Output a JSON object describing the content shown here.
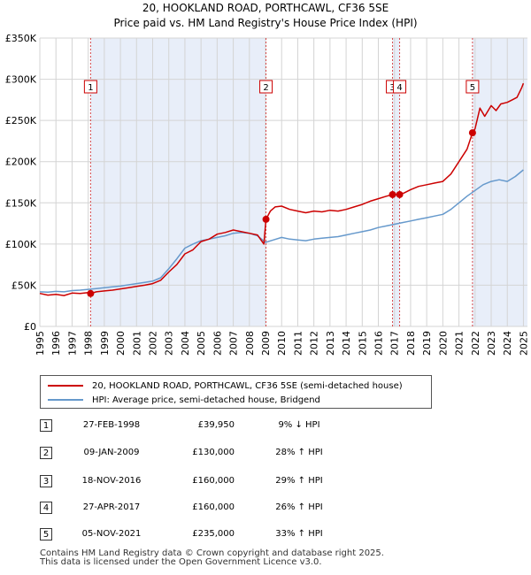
{
  "title_line1": "20, HOOKLAND ROAD, PORTHCAWL, CF36 5SE",
  "title_line2": "Price paid vs. HM Land Registry's House Price Index (HPI)",
  "chart_data": {
    "type": "line",
    "title": "20, HOOKLAND ROAD, PORTHCAWL, CF36 5SE — Price paid vs. HM Land Registry's House Price Index (HPI)",
    "xlim": [
      1995.0,
      2025.25
    ],
    "ylim": [
      0,
      350000
    ],
    "y_ticks": [
      0,
      50000,
      100000,
      150000,
      200000,
      250000,
      300000,
      350000
    ],
    "y_tick_labels": [
      "£0",
      "£50K",
      "£100K",
      "£150K",
      "£200K",
      "£250K",
      "£300K",
      "£350K"
    ],
    "x_ticks": [
      1995,
      1996,
      1997,
      1998,
      1999,
      2000,
      2001,
      2002,
      2003,
      2004,
      2005,
      2006,
      2007,
      2008,
      2009,
      2010,
      2011,
      2012,
      2013,
      2014,
      2015,
      2016,
      2017,
      2018,
      2019,
      2020,
      2021,
      2022,
      2023,
      2024,
      2025
    ],
    "x_tick_labels": [
      "1995",
      "1996",
      "1997",
      "1998",
      "1999",
      "2000",
      "2001",
      "2002",
      "2003",
      "2004",
      "2005",
      "2006",
      "2007",
      "2008",
      "2009",
      "2010",
      "2011",
      "2012",
      "2013",
      "2014",
      "2015",
      "2016",
      "2017",
      "2018",
      "2019",
      "2020",
      "2021",
      "2022",
      "2023",
      "2024",
      "2025"
    ],
    "grid": true,
    "series": [
      {
        "name": "20, HOOKLAND ROAD, PORTHCAWL, CF36 5SE (semi-detached house)",
        "color": "#cc0000",
        "x": [
          1995.0,
          1995.5,
          1996.0,
          1996.5,
          1997.0,
          1997.5,
          1998.0,
          1998.15,
          1998.5,
          1999.0,
          1999.5,
          2000.0,
          2000.5,
          2001.0,
          2001.5,
          2002.0,
          2002.5,
          2003.0,
          2003.5,
          2004.0,
          2004.5,
          2005.0,
          2005.5,
          2006.0,
          2006.5,
          2007.0,
          2007.5,
          2008.0,
          2008.5,
          2008.9,
          2008.95,
          2009.03,
          2009.3,
          2009.6,
          2010.0,
          2010.5,
          2011.0,
          2011.5,
          2012.0,
          2012.5,
          2013.0,
          2013.5,
          2014.0,
          2014.5,
          2015.0,
          2015.5,
          2016.0,
          2016.5,
          2016.88,
          2017.0,
          2017.32,
          2017.6,
          2018.0,
          2018.5,
          2019.0,
          2019.5,
          2020.0,
          2020.5,
          2021.0,
          2021.5,
          2021.84,
          2022.0,
          2022.3,
          2022.6,
          2023.0,
          2023.3,
          2023.6,
          2024.0,
          2024.3,
          2024.6,
          2024.9,
          2025.0
        ],
        "values": [
          40000,
          38000,
          39000,
          37500,
          40500,
          40000,
          41000,
          39950,
          42000,
          43000,
          44000,
          45500,
          47000,
          48500,
          50000,
          52000,
          56000,
          66000,
          75000,
          88000,
          93000,
          103000,
          106000,
          112000,
          114000,
          117000,
          115000,
          113000,
          111000,
          100000,
          112000,
          130000,
          140000,
          145000,
          146000,
          142000,
          140000,
          138000,
          140000,
          139000,
          141000,
          140000,
          142000,
          145000,
          148000,
          152000,
          155000,
          158000,
          160000,
          160000,
          160000,
          162000,
          166000,
          170000,
          172000,
          174000,
          176000,
          185000,
          200000,
          215000,
          235000,
          240000,
          265000,
          255000,
          268000,
          262000,
          270000,
          272000,
          275000,
          278000,
          290000,
          295000
        ]
      },
      {
        "name": "HPI: Average price, semi-detached house, Bridgend",
        "color": "#6699cc",
        "x": [
          1995.0,
          1995.5,
          1996.0,
          1996.5,
          1997.0,
          1997.5,
          1998.0,
          1998.5,
          1999.0,
          1999.5,
          2000.0,
          2000.5,
          2001.0,
          2001.5,
          2002.0,
          2002.5,
          2003.0,
          2003.5,
          2004.0,
          2004.5,
          2005.0,
          2005.5,
          2006.0,
          2006.5,
          2007.0,
          2007.5,
          2008.0,
          2008.5,
          2009.0,
          2009.5,
          2010.0,
          2010.5,
          2011.0,
          2011.5,
          2012.0,
          2012.5,
          2013.0,
          2013.5,
          2014.0,
          2014.5,
          2015.0,
          2015.5,
          2016.0,
          2016.5,
          2017.0,
          2017.5,
          2018.0,
          2018.5,
          2019.0,
          2019.5,
          2020.0,
          2020.5,
          2021.0,
          2021.5,
          2022.0,
          2022.5,
          2023.0,
          2023.5,
          2024.0,
          2024.5,
          2025.0
        ],
        "values": [
          42000,
          41500,
          42500,
          42000,
          43500,
          44000,
          45000,
          46000,
          47000,
          48000,
          49000,
          50500,
          52000,
          53500,
          55000,
          59000,
          70000,
          82000,
          95000,
          100000,
          104000,
          106000,
          108000,
          110000,
          113000,
          114000,
          113000,
          110000,
          102000,
          105000,
          108000,
          106000,
          105000,
          104000,
          106000,
          107000,
          108000,
          109000,
          111000,
          113000,
          115000,
          117000,
          120000,
          122000,
          124000,
          126000,
          128000,
          130000,
          132000,
          134000,
          136000,
          142000,
          150000,
          158000,
          165000,
          172000,
          176000,
          178000,
          176000,
          182000,
          190000
        ]
      }
    ],
    "sales": [
      {
        "label": "1",
        "x": 1998.15,
        "value": 39950
      },
      {
        "label": "2",
        "x": 2009.03,
        "value": 130000
      },
      {
        "label": "3",
        "x": 2016.88,
        "value": 160000
      },
      {
        "label": "4",
        "x": 2017.32,
        "value": 160000
      },
      {
        "label": "5",
        "x": 2021.84,
        "value": 235000
      }
    ],
    "shaded_ranges": [
      [
        1998.15,
        2009.03
      ],
      [
        2016.88,
        2017.32
      ],
      [
        2021.84,
        2025.25
      ]
    ],
    "legend_position": "below"
  },
  "legend": {
    "red_label": "20, HOOKLAND ROAD, PORTHCAWL, CF36 5SE (semi-detached house)",
    "blue_label": "HPI: Average price, semi-detached house, Bridgend",
    "red_color": "#cc0000",
    "blue_color": "#6699cc"
  },
  "table": [
    {
      "num": "1",
      "date": "27-FEB-1998",
      "price": "£39,950",
      "hpi": "9% ↓ HPI"
    },
    {
      "num": "2",
      "date": "09-JAN-2009",
      "price": "£130,000",
      "hpi": "28% ↑ HPI"
    },
    {
      "num": "3",
      "date": "18-NOV-2016",
      "price": "£160,000",
      "hpi": "29% ↑ HPI"
    },
    {
      "num": "4",
      "date": "27-APR-2017",
      "price": "£160,000",
      "hpi": "26% ↑ HPI"
    },
    {
      "num": "5",
      "date": "05-NOV-2021",
      "price": "£235,000",
      "hpi": "33% ↑ HPI"
    }
  ],
  "footer_line1": "Contains HM Land Registry data © Crown copyright and database right 2025.",
  "footer_line2": "This data is licensed under the Open Government Licence v3.0."
}
